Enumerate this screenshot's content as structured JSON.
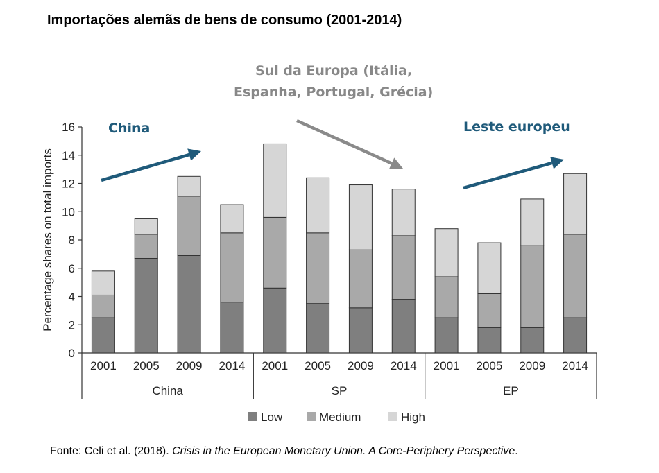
{
  "title": "Importações alemãs de bens de consumo (2001-2014)",
  "source": {
    "prefix": "Fonte: Celi et al. (2018). ",
    "italic": "Crisis in the European Monetary Union. A Core-Periphery Perspective",
    "suffix": "."
  },
  "annotations": {
    "china": "China",
    "south_line1": "Sul da Europa (Itália,",
    "south_line2": "Espanha, Portugal, Grécia)",
    "east": "Leste europeu"
  },
  "colors": {
    "low": "#7f7f7f",
    "medium": "#a9a9a9",
    "high": "#d6d6d6",
    "annotation_blue": "#1f5a7a",
    "annotation_gray": "#888888",
    "arrow_blue": "#1f5a7a",
    "arrow_gray": "#8a8a8a"
  },
  "chart_data": {
    "type": "bar",
    "stacked": true,
    "ylabel": "Percentage shares on total imports",
    "ylim": [
      0,
      16
    ],
    "yticks": [
      0,
      2,
      4,
      6,
      8,
      10,
      12,
      14,
      16
    ],
    "groups": [
      {
        "name": "China",
        "categories": [
          "2001",
          "2005",
          "2009",
          "2014"
        ]
      },
      {
        "name": "SP",
        "categories": [
          "2001",
          "2005",
          "2009",
          "2014"
        ]
      },
      {
        "name": "EP",
        "categories": [
          "2001",
          "2005",
          "2009",
          "2014"
        ]
      }
    ],
    "series": [
      {
        "name": "Low",
        "values": [
          2.5,
          6.7,
          6.9,
          3.6,
          4.6,
          3.5,
          3.2,
          3.8,
          2.5,
          1.8,
          1.8,
          2.5
        ]
      },
      {
        "name": "Medium",
        "values": [
          1.6,
          1.7,
          4.2,
          4.9,
          5.0,
          5.0,
          4.1,
          4.5,
          2.9,
          2.4,
          5.8,
          5.9
        ]
      },
      {
        "name": "High",
        "values": [
          1.7,
          1.1,
          1.4,
          2.0,
          5.2,
          3.9,
          4.6,
          3.3,
          3.4,
          3.6,
          3.3,
          4.3
        ]
      }
    ],
    "legend": "bottom",
    "grid": false
  }
}
